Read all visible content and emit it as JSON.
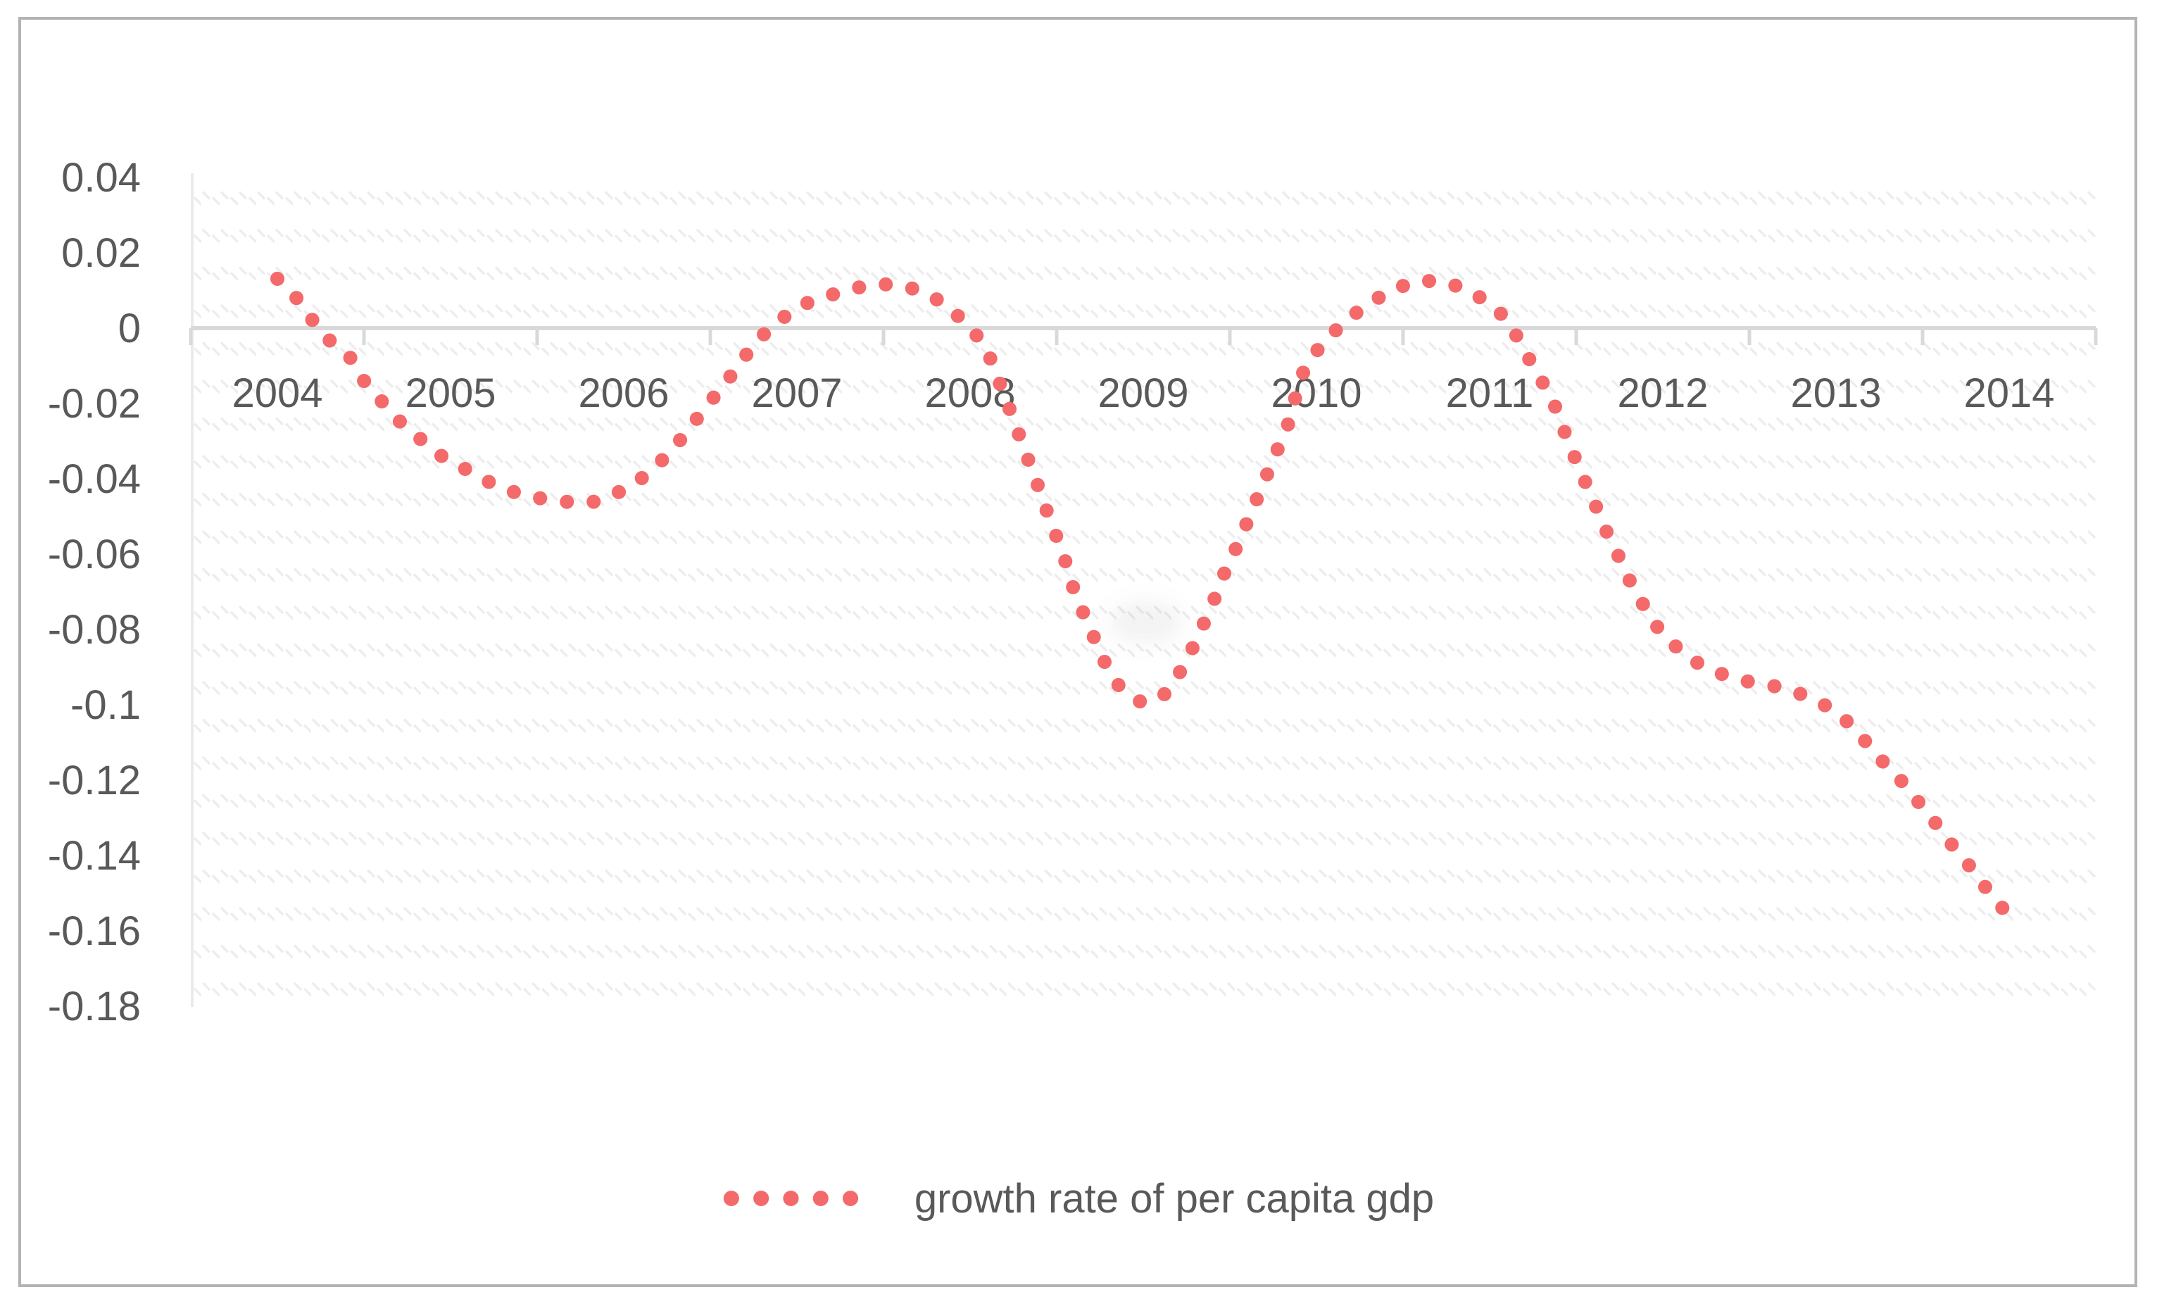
{
  "chart_data": {
    "type": "line",
    "title": "",
    "xlabel": "",
    "ylabel": "",
    "categories": [
      "2004",
      "2005",
      "2006",
      "2007",
      "2008",
      "2009",
      "2010",
      "2011",
      "2012",
      "2013",
      "2014"
    ],
    "series": [
      {
        "name": "growth rate of per capita gdp",
        "values": [
          0.013,
          -0.035,
          -0.043,
          0.005,
          -0.001,
          -0.099,
          -0.006,
          0.006,
          -0.081,
          -0.102,
          -0.156
        ],
        "color": "#f4696a",
        "line_style": "smooth round-dot dashed"
      }
    ],
    "ylim": [
      -0.18,
      0.04
    ],
    "y_ticks": [
      0.04,
      0.02,
      0,
      -0.02,
      -0.04,
      -0.06,
      -0.08,
      -0.1,
      -0.12,
      -0.14,
      -0.16,
      -0.18
    ],
    "y_tick_labels": [
      "0.04",
      "0.02",
      "0",
      "-0.02",
      "-0.04",
      "-0.06",
      "-0.08",
      "-0.1",
      "-0.12",
      "-0.14",
      "-0.16",
      "-0.18"
    ],
    "grid": "none (hatched plot-area fill, zero axis line only)",
    "legend_position": "bottom-center",
    "curve_samples": {
      "x": [
        2004.0,
        2004.11,
        2004.25,
        2004.34,
        2004.43,
        2004.5,
        2004.6,
        2004.7,
        2004.82,
        2004.93,
        2005.07,
        2005.2,
        2005.34,
        2005.48,
        2005.63,
        2005.8,
        2005.94,
        2006.07,
        2006.19,
        2006.3,
        2006.39,
        2006.48,
        2006.58,
        2006.67,
        2006.76,
        2006.87,
        2007.0,
        2007.13,
        2007.28,
        2007.43,
        2007.58,
        2007.73,
        2007.86,
        2007.97,
        2008.07,
        2008.14,
        2008.19,
        2008.25,
        2008.31,
        2008.37,
        2008.43,
        2008.5,
        2008.56,
        2008.6,
        2008.66,
        2008.72,
        2008.78,
        2008.86,
        2008.99,
        2009.11,
        2009.2,
        2009.27,
        2009.34,
        2009.4,
        2009.45,
        2009.55,
        2009.65,
        2009.75,
        2009.85,
        2009.9,
        2009.96,
        2010.06,
        2010.17,
        2010.29,
        2010.42,
        2010.57,
        2010.72,
        2010.87,
        2011.0,
        2011.11,
        2011.2,
        2011.29,
        2011.38,
        2011.45,
        2011.51,
        2011.57,
        2011.63,
        2011.69,
        2011.76,
        2011.82,
        2011.9,
        2011.98,
        2012.09,
        2012.21,
        2012.35,
        2012.5,
        2012.65,
        2012.79,
        2012.94,
        2013.06,
        2013.16,
        2013.26,
        2013.36,
        2013.44,
        2013.46,
        2013.56,
        2013.65,
        2013.75,
        2013.84,
        2013.93,
        2014.0
      ],
      "y": [
        0.0131,
        0.008,
        -0.0009,
        -0.005,
        -0.0082,
        -0.014,
        -0.0193,
        -0.0245,
        -0.0292,
        -0.0335,
        -0.037,
        -0.0404,
        -0.0432,
        -0.0449,
        -0.046,
        -0.0465,
        -0.0443,
        -0.0411,
        -0.0366,
        -0.0312,
        -0.026,
        -0.0206,
        -0.015,
        -0.0095,
        -0.0037,
        0.0009,
        0.0056,
        0.0079,
        0.0099,
        0.0116,
        0.0116,
        0.0097,
        0.0062,
        0.0015,
        -0.0036,
        -0.0103,
        -0.0172,
        -0.024,
        -0.032,
        -0.0389,
        -0.047,
        -0.0555,
        -0.0632,
        -0.0697,
        -0.0763,
        -0.0826,
        -0.089,
        -0.095,
        -0.0994,
        -0.0979,
        -0.0923,
        -0.0864,
        -0.0794,
        -0.0733,
        -0.0669,
        -0.057,
        -0.046,
        -0.035,
        -0.024,
        -0.014,
        -0.0084,
        -0.0028,
        0.0019,
        0.0062,
        0.0097,
        0.0125,
        0.0125,
        0.0103,
        0.0065,
        0.0019,
        -0.006,
        -0.013,
        -0.021,
        -0.0297,
        -0.0364,
        -0.0428,
        -0.049,
        -0.0557,
        -0.0619,
        -0.0682,
        -0.0744,
        -0.0802,
        -0.0852,
        -0.0892,
        -0.092,
        -0.0939,
        -0.0951,
        -0.097,
        -0.1002,
        -0.1043,
        -0.1092,
        -0.1146,
        -0.1192,
        -0.1239,
        -0.1249,
        -0.1305,
        -0.1361,
        -0.1415,
        -0.1471,
        -0.1523,
        -0.156
      ]
    }
  },
  "legend": {
    "label": "growth rate of per capita gdp"
  },
  "colors": {
    "series": "#f4696a",
    "axis_text": "#595959",
    "axis_line": "#d9d9d9",
    "y_axis_line": "#eaeaea",
    "hatch": "#ededed",
    "figure_border": "#b3b3b3",
    "background": "#ffffff"
  }
}
